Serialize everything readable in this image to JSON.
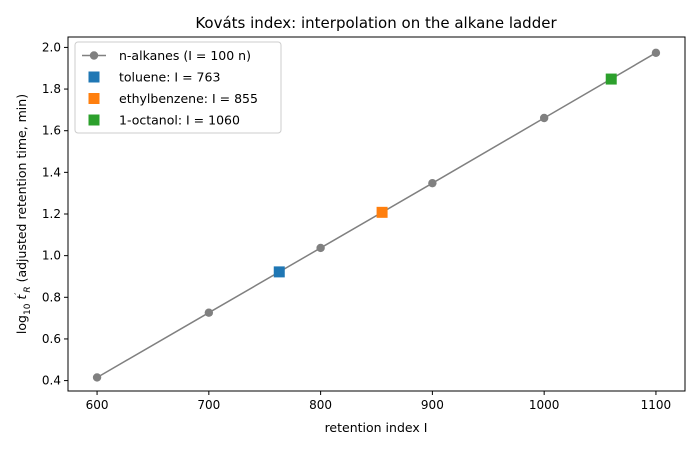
{
  "chart_data": {
    "type": "scatter",
    "title": "Kováts index: interpolation on the alkane ladder",
    "xlabel": "retention index I",
    "ylabel": "log₁₀ t′R (adjusted retention time, min)",
    "ylabel_parts": {
      "pre": "log",
      "sub1": "10",
      "mid": " t",
      "prime": "′",
      "sub2": "R",
      "post": " (adjusted retention time, min)"
    },
    "xlim": [
      574,
      1126
    ],
    "ylim": [
      0.35,
      2.05
    ],
    "xticks": [
      600,
      700,
      800,
      900,
      1000,
      1100
    ],
    "yticks": [
      0.4,
      0.6,
      0.8,
      1.0,
      1.2,
      1.4,
      1.6,
      1.8,
      2.0
    ],
    "ytick_labels": [
      "0.4",
      "0.6",
      "0.8",
      "1.0",
      "1.2",
      "1.4",
      "1.6",
      "1.8",
      "2.0"
    ],
    "grid": false,
    "legend_position": "top-left",
    "series": [
      {
        "name": "n-alkanes (I = 100 n)",
        "kind": "line-marker",
        "marker": "circle",
        "color": "#808080",
        "x": [
          600,
          700,
          800,
          900,
          1000,
          1100
        ],
        "y": [
          0.415,
          0.726,
          1.037,
          1.348,
          1.661,
          1.974
        ]
      },
      {
        "name": "toluene: I = 763",
        "kind": "marker",
        "marker": "square",
        "color": "#1f77b4",
        "x": [
          763
        ],
        "y": [
          0.922
        ]
      },
      {
        "name": "ethylbenzene: I = 855",
        "kind": "marker",
        "marker": "square",
        "color": "#ff7f0e",
        "x": [
          855
        ],
        "y": [
          1.208
        ]
      },
      {
        "name": "1-octanol: I = 1060",
        "kind": "marker",
        "marker": "square",
        "color": "#2ca02c",
        "x": [
          1060
        ],
        "y": [
          1.848
        ]
      }
    ]
  }
}
